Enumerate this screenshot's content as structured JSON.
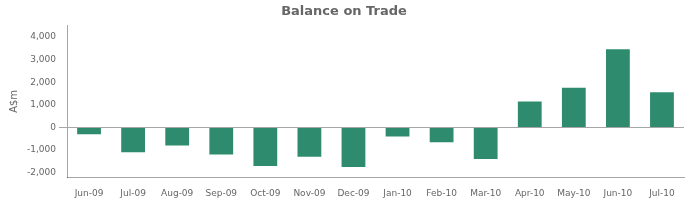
{
  "chart_data": {
    "type": "bar",
    "title": "Balance on Trade",
    "ylabel": "A$m",
    "categories": [
      "Jun-09",
      "Jul-09",
      "Aug-09",
      "Sep-09",
      "Oct-09",
      "Nov-09",
      "Dec-09",
      "Jan-10",
      "Feb-10",
      "Mar-10",
      "Apr-10",
      "May-10",
      "Jun-10",
      "Jul-10"
    ],
    "values": [
      -300,
      -1100,
      -800,
      -1200,
      -1700,
      -1300,
      -1750,
      -400,
      -650,
      -1400,
      1150,
      1750,
      3450,
      1550
    ],
    "color": "#2e8b6e",
    "ylim": [
      -2200,
      4500
    ],
    "yticks": [
      {
        "value": -2000,
        "label": "-2,000"
      },
      {
        "value": -1000,
        "label": "-1,000"
      },
      0,
      {
        "value": 1000,
        "label": "1,000"
      },
      {
        "value": 2000,
        "label": "2,000"
      },
      {
        "value": 3000,
        "label": "3,000"
      },
      {
        "value": 4000,
        "label": "4,000"
      }
    ],
    "grid": false
  }
}
